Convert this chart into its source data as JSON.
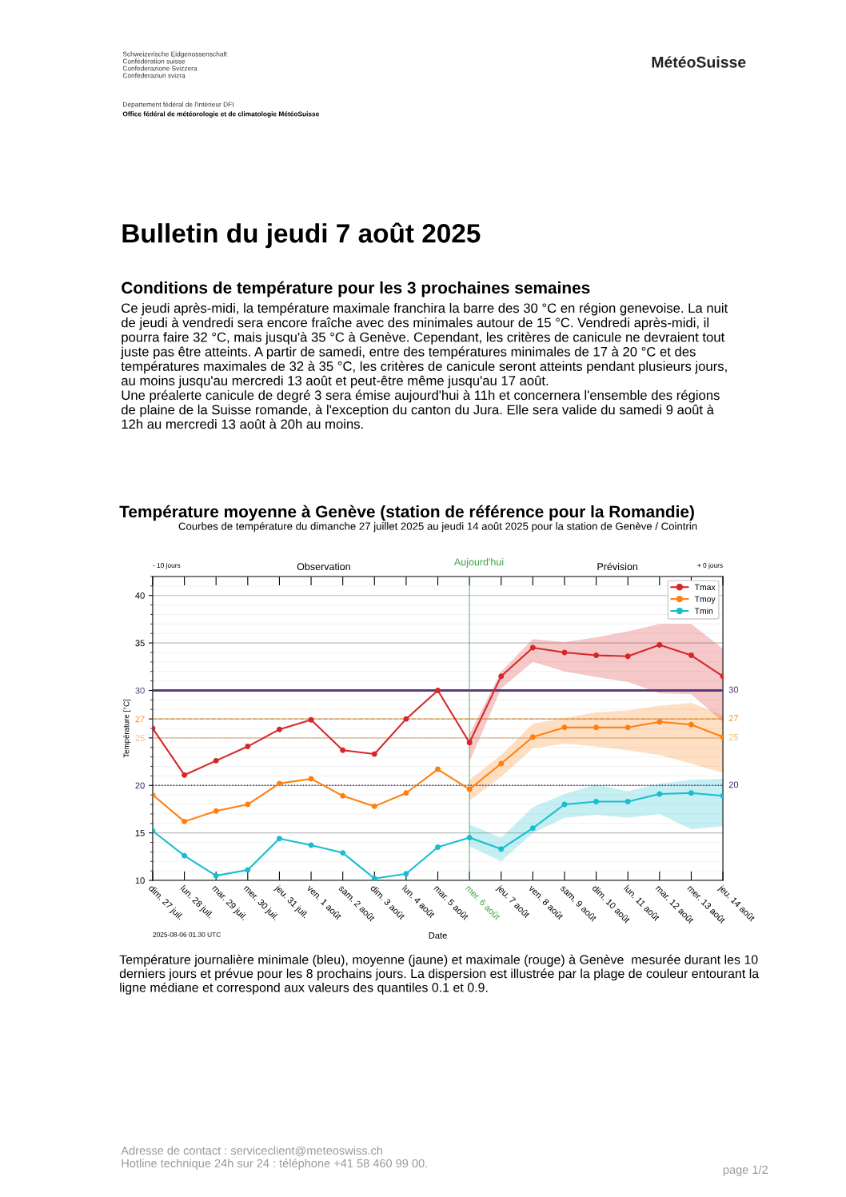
{
  "chart_data": {
    "type": "line",
    "title": "Courbes de température du dimanche 27 juillet 2025 au jeudi 14 août 2025 pour la station de Genève / Cointrin",
    "xlabel": "Date",
    "ylabel": "Température [°C]",
    "categories": [
      "dim. 27 juil.",
      "lun. 28 juil.",
      "mar. 29 juil.",
      "mer. 30 juil.",
      "jeu. 31 juil.",
      "ven. 1 août",
      "sam. 2 août",
      "dim. 3 août",
      "lun. 4 août",
      "mar. 5 août",
      "mer. 6 août",
      "jeu. 7 août",
      "ven. 8 août",
      "sam. 9 août",
      "dim. 10 août",
      "lun. 11 août",
      "mar. 12 août",
      "mer. 13 août",
      "jeu. 14 août"
    ],
    "series": [
      {
        "name": "Tmax",
        "color": "#d62728",
        "values": [
          26.0,
          21.1,
          22.6,
          24.1,
          25.9,
          26.9,
          23.7,
          23.3,
          27.0,
          30.0,
          24.5,
          31.5,
          34.5,
          34.0,
          33.7,
          33.6,
          34.8,
          33.7,
          31.5
        ],
        "lower": [
          null,
          null,
          null,
          null,
          null,
          null,
          null,
          null,
          null,
          null,
          22.5,
          30.2,
          33.0,
          32.0,
          31.4,
          30.9,
          29.7,
          29.6,
          26.7
        ],
        "upper": [
          null,
          null,
          null,
          null,
          null,
          null,
          null,
          null,
          null,
          null,
          25.4,
          32.0,
          35.4,
          35.1,
          35.6,
          36.2,
          37.0,
          37.0,
          34.4
        ]
      },
      {
        "name": "Tmoy",
        "color": "#ff7f0e",
        "values": [
          19.0,
          16.2,
          17.3,
          18.0,
          20.2,
          20.7,
          18.9,
          17.8,
          19.2,
          21.7,
          19.6,
          22.3,
          25.1,
          26.1,
          26.1,
          26.1,
          26.7,
          26.4,
          25.1
        ],
        "lower": [
          null,
          null,
          null,
          null,
          null,
          null,
          null,
          null,
          null,
          null,
          18.4,
          20.9,
          23.9,
          24.4,
          24.1,
          23.7,
          23.2,
          22.3,
          21.3
        ],
        "upper": [
          null,
          null,
          null,
          null,
          null,
          null,
          null,
          null,
          null,
          null,
          20.6,
          23.2,
          26.5,
          27.1,
          27.7,
          27.9,
          28.4,
          28.7,
          27.4
        ]
      },
      {
        "name": "Tmin",
        "color": "#17becf",
        "values": [
          15.2,
          12.6,
          10.5,
          11.1,
          14.4,
          13.7,
          12.9,
          10.2,
          10.7,
          13.5,
          14.5,
          13.3,
          15.5,
          18.0,
          18.3,
          18.3,
          19.1,
          19.2,
          18.9
        ],
        "lower": [
          null,
          null,
          null,
          null,
          null,
          null,
          null,
          null,
          null,
          null,
          13.6,
          12.0,
          15.0,
          16.6,
          16.9,
          16.6,
          17.0,
          15.4,
          15.7
        ],
        "upper": [
          null,
          null,
          null,
          null,
          null,
          null,
          null,
          null,
          null,
          null,
          15.9,
          14.5,
          17.7,
          19.1,
          20.1,
          19.4,
          20.2,
          20.6,
          20.7
        ]
      }
    ],
    "ylim": [
      10,
      42
    ],
    "yticks": [
      10,
      15,
      20,
      25,
      27,
      30,
      35,
      40
    ],
    "ref_lines": [
      {
        "axis": "y",
        "value": 30,
        "label": "30",
        "color": "#5b3a7a",
        "line_style": "solid"
      },
      {
        "axis": "y",
        "value": 27,
        "label": "27",
        "color": "#f28e2b",
        "line_style": "dashed"
      },
      {
        "axis": "y",
        "value": 25,
        "label": "25",
        "color": "#f5b97a",
        "line_style": "dashed"
      },
      {
        "axis": "y",
        "value": 20,
        "label": "20",
        "color": "#3b2a6a",
        "line_style": "dotted"
      },
      {
        "axis": "x",
        "value": "mer. 6 août",
        "label": "Aujourd'hui",
        "color": "#3ca03c",
        "line_style": "solid"
      }
    ],
    "marker": "circle",
    "grid": "y",
    "legend": "top right",
    "annotations": [
      "Schweizerische Eidgenossenschaft\nConfédération suisse\nConfederazione Svizzera\nConfederaziun svizra",
      "Département fédéral de l'intérieur DFI",
      "Office fédéral de météorologie et de climatologie MétéoSuisse",
      "MétéoSuisse",
      "Bulletin du jeudi 7 août 2025",
      "Conditions de température pour les 3 prochaines semaines",
      "Ce jeudi après-midi, la température maximale franchira la barre des 30 °C en région genevoise. La nuit\nde jeudi à vendredi sera encore fraîche avec des minimales autour de 15 °C. Vendredi après-midi, il\npourra faire 32 °C, mais jusqu'à 35 °C à Genève. Cependant, les critères de canicule ne devraient tout\njuste pas être atteints. A partir de samedi, entre des températures minimales de 17 à 20 °C et des\ntempératures maximales de 32 à 35 °C, les critères de canicule seront atteints pendant plusieurs jours,\nau moins jusqu'au mercredi 13 août et peut-être même jusqu'au 17 août.\nUne préalerte canicule de degré 3 sera émise aujourd'hui à 11h et concernera l'ensemble des régions\nde plaine de la Suisse romande, à l'exception du canton du Jura. Elle sera valide du samedi 9 août à\n12h au mercredi 13 août à 20h au moins.",
      "Température moyenne à Genève (station de référence pour la Romandie)",
      "- 10 jours",
      "Observation",
      "Prévision",
      "+ 0 jours",
      "2025-08-06 01.30 UTC",
      "Température journalière minimale (bleu), moyenne (jaune) et maximale (rouge) à Genève  mesurée durant les 10\nderniers jours et prévue pour les 8 prochains jours. La dispersion est illustrée par la plage de couleur entourant la\nligne médiane et correspond aux valeurs des quantiles 0.1 et 0.9.",
      "Adresse de contact : serviceclient@meteoswiss.ch\nHotline technique 24h sur 24 : téléphone +41 58 460 99 00.",
      "page 1/2"
    ]
  }
}
